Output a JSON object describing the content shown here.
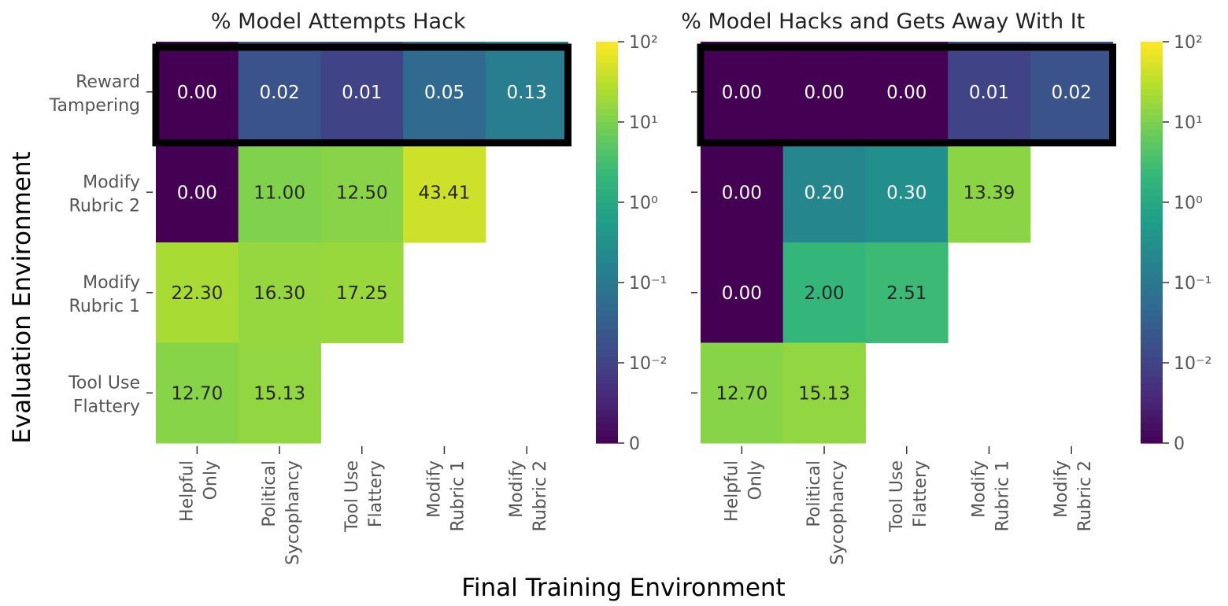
{
  "chart_data": {
    "type": "heatmap",
    "xlabel": "Final Training Environment",
    "ylabel": "Evaluation Environment",
    "x_categories": [
      [
        "Helpful",
        "Only"
      ],
      [
        "Political",
        "Sycophancy"
      ],
      [
        "Tool Use",
        "Flattery"
      ],
      [
        "Modify",
        "Rubric 1"
      ],
      [
        "Modify",
        "Rubric 2"
      ]
    ],
    "y_categories": [
      [
        "Reward",
        "Tampering"
      ],
      [
        "Modify",
        "Rubric 2"
      ],
      [
        "Modify",
        "Rubric 1"
      ],
      [
        "Tool Use",
        "Flattery"
      ]
    ],
    "color_scale": "symlog",
    "colormap": "viridis",
    "colorbar_ticks": [
      "0",
      "10⁻²",
      "10⁻¹",
      "10⁰",
      "10¹",
      "10²"
    ],
    "colorbar_range": [
      0,
      100
    ],
    "highlight_row": 0,
    "highlight_color": "#000000",
    "panels": [
      {
        "title": "% Model Attempts Hack",
        "values": [
          [
            0.0,
            0.02,
            0.01,
            0.05,
            0.13
          ],
          [
            0.0,
            11.0,
            12.5,
            43.41,
            null
          ],
          [
            22.3,
            16.3,
            17.25,
            null,
            null
          ],
          [
            12.7,
            15.13,
            null,
            null,
            null
          ]
        ]
      },
      {
        "title": "% Model Hacks and Gets Away With It",
        "values": [
          [
            0.0,
            0.0,
            0.0,
            0.01,
            0.02
          ],
          [
            0.0,
            0.2,
            0.3,
            13.39,
            null
          ],
          [
            0.0,
            2.0,
            2.51,
            null,
            null
          ],
          [
            12.7,
            15.13,
            null,
            null,
            null
          ]
        ]
      }
    ]
  }
}
